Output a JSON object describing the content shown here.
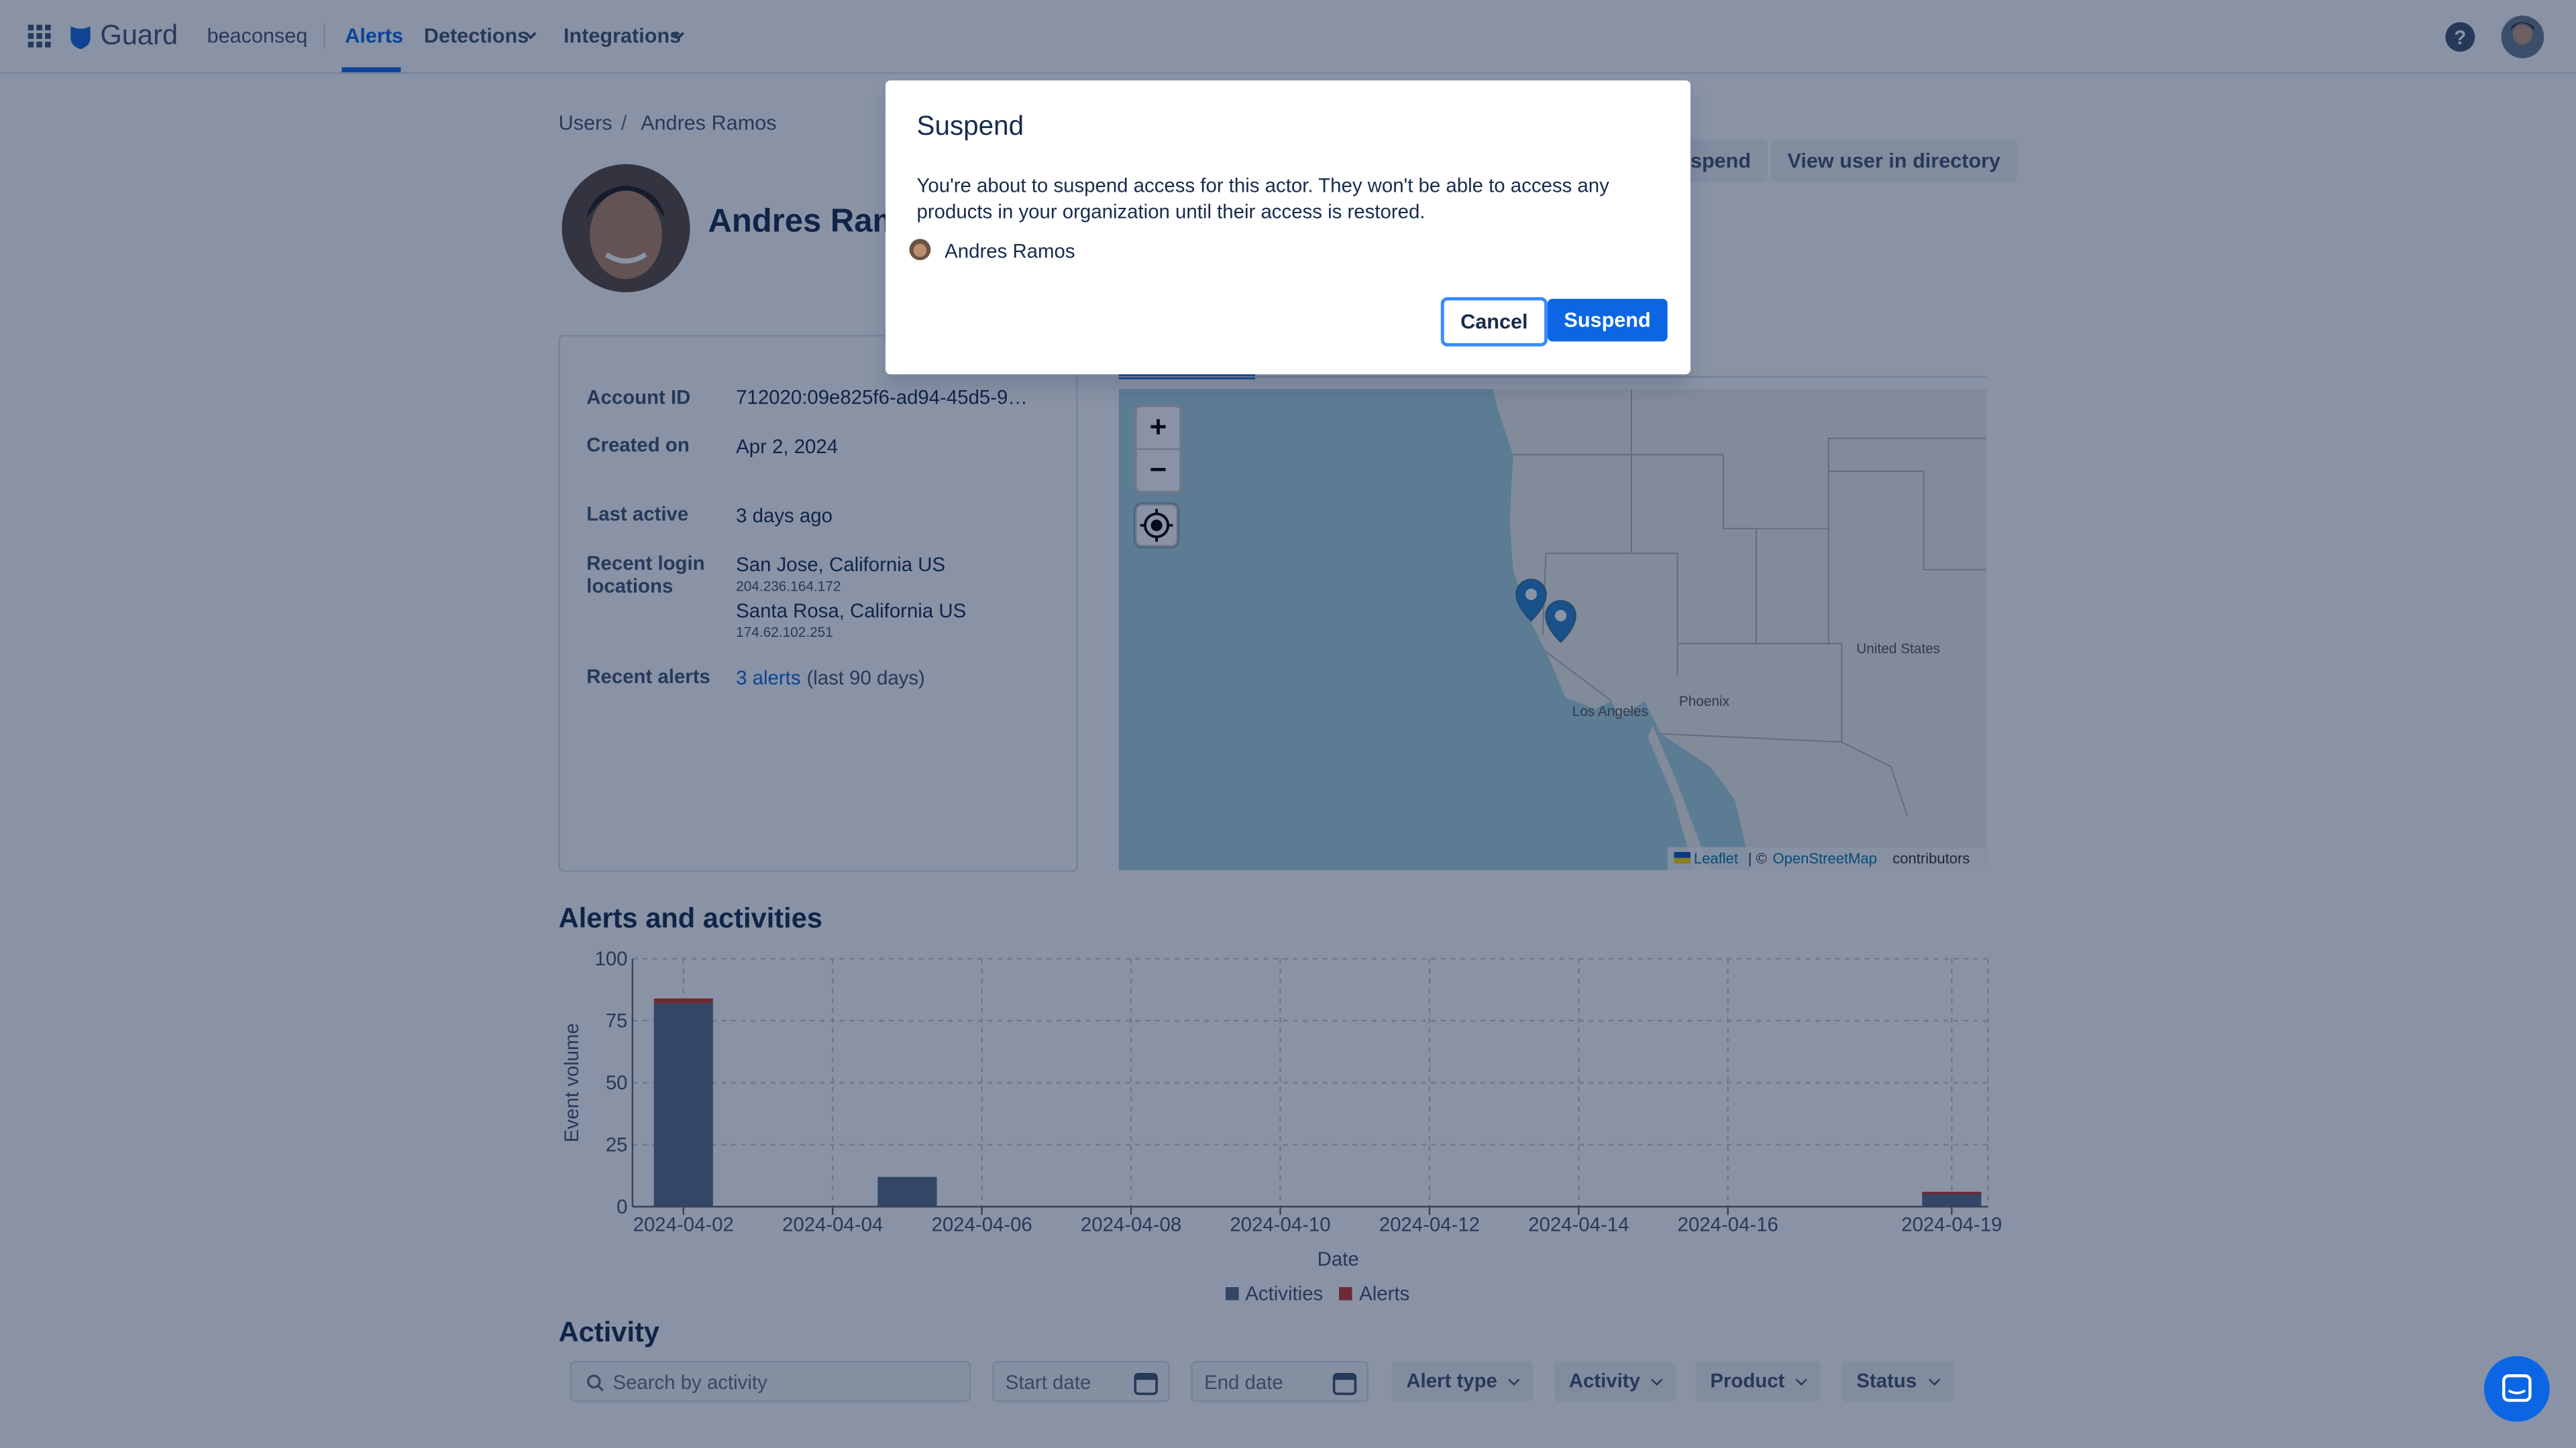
{
  "nav": {
    "app": "Guard",
    "workspace": "beaconseq",
    "items": [
      "Alerts",
      "Detections",
      "Integrations"
    ]
  },
  "breadcrumb": [
    "Users",
    "Andres Ramos"
  ],
  "profile": {
    "name": "Andres Ramos",
    "actions": [
      "Suspend",
      "View user in directory"
    ]
  },
  "details": {
    "account_id": {
      "label": "Account ID",
      "value": "712020:09e825f6-ad94-45d5-9…"
    },
    "created_on": {
      "label": "Created on",
      "value": "Apr 2, 2024"
    },
    "last_active": {
      "label": "Last active",
      "value": "3 days ago"
    },
    "locations": {
      "label": "Recent login locations",
      "items": [
        {
          "place": "San Jose, California US",
          "ip": "204.236.164.172"
        },
        {
          "place": "Santa Rosa, California US",
          "ip": "174.62.102.251"
        }
      ]
    },
    "alerts": {
      "label": "Recent alerts",
      "link": "3 alerts",
      "note": "(last 90 days)"
    }
  },
  "map": {
    "labels": [
      "United States",
      "Phoenix",
      "Los Angeles"
    ],
    "attribution": {
      "leaflet": "Leaflet",
      "sep": "| ©",
      "osm": "OpenStreetMap",
      "suffix": "contributors"
    }
  },
  "chart_data": {
    "type": "bar",
    "stacked": true,
    "title": "Alerts and activities",
    "x_label": "Date",
    "y_label": "Event volume",
    "x": [
      "2024-04-02",
      "2024-04-05",
      "2024-04-19"
    ],
    "series": [
      {
        "name": "Activities",
        "color": "#5b6b85",
        "values": [
          82,
          12,
          5
        ]
      },
      {
        "name": "Alerts",
        "color": "#c9372c",
        "values": [
          2,
          0,
          1
        ]
      }
    ],
    "xticks": [
      "2024-04-02",
      "2024-04-04",
      "2024-04-06",
      "2024-04-08",
      "2024-04-10",
      "2024-04-12",
      "2024-04-14",
      "2024-04-16",
      "2024-04-19"
    ],
    "ylim": [
      0,
      100
    ],
    "yticks": [
      0,
      25,
      50,
      75,
      100
    ],
    "grid": true,
    "legend": "bottom"
  },
  "activity": {
    "title": "Activity",
    "search": "Search by activity",
    "start": "Start date",
    "end": "End date",
    "filters": [
      "Alert type",
      "Activity",
      "Product",
      "Status"
    ]
  },
  "modal": {
    "title": "Suspend",
    "body": "You're about to suspend access for this actor. They won't be able to access any products in your organization until their access is restored.",
    "user": "Andres Ramos",
    "cancel": "Cancel",
    "confirm": "Suspend"
  }
}
